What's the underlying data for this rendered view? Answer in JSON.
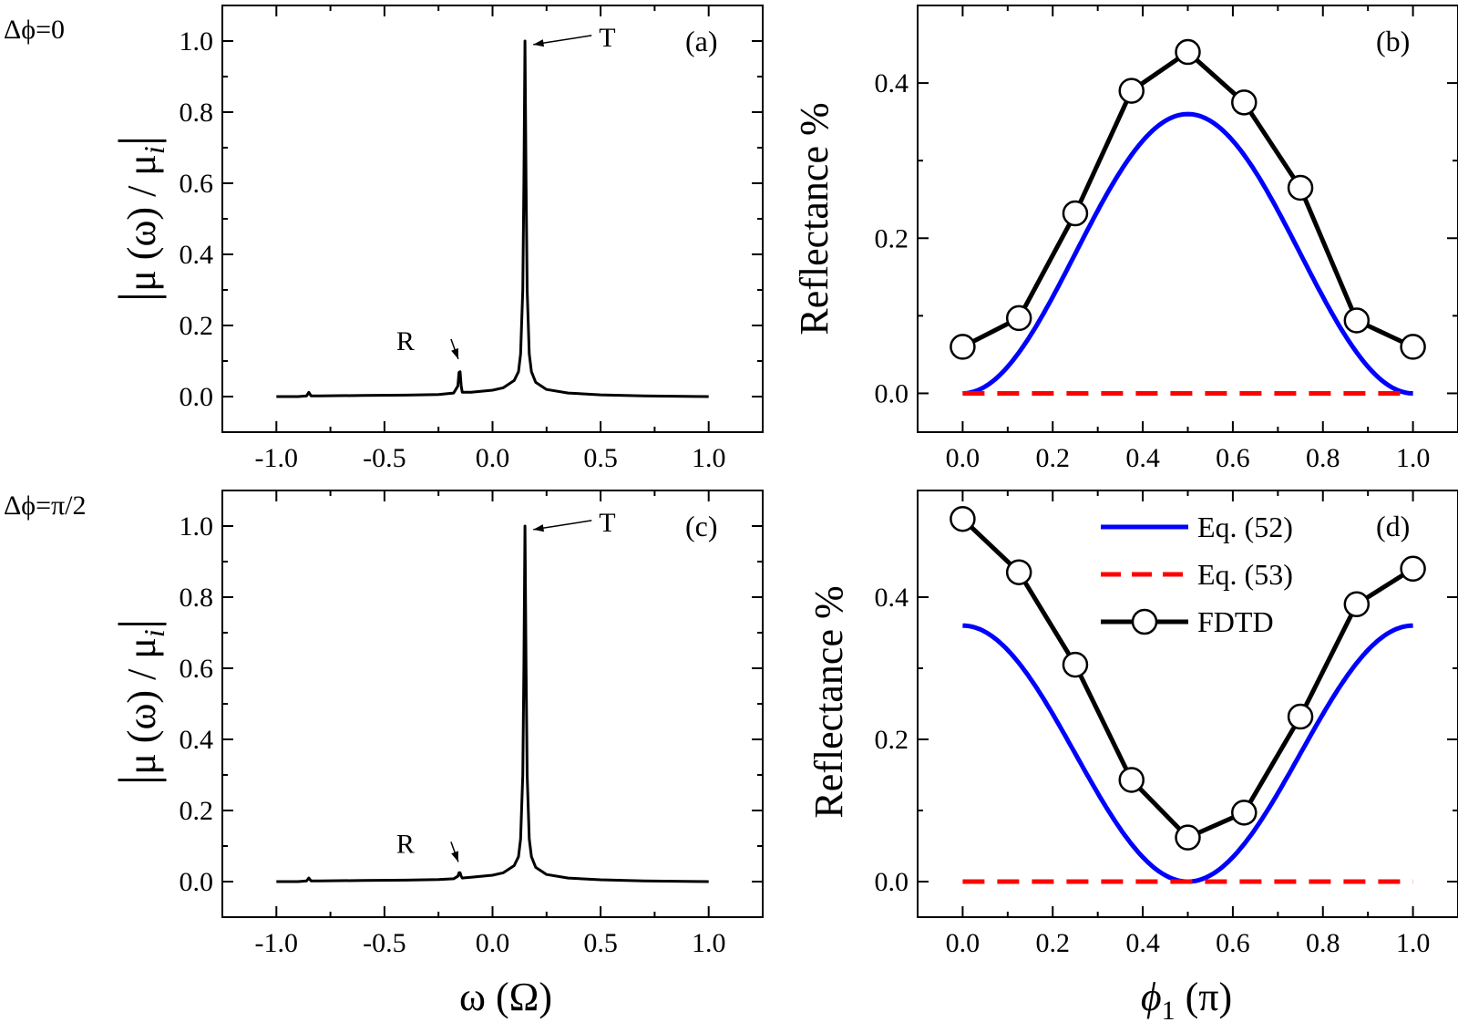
{
  "figure": {
    "row_labels": [
      "Δϕ=0",
      "Δϕ=π/2"
    ]
  },
  "chart_data": [
    {
      "id": "a",
      "type": "line",
      "panel_label": "(a)",
      "xlabel": "",
      "ylabel": "|μ(ω)/μi|",
      "xlim": [
        -1.25,
        1.25
      ],
      "ylim": [
        -0.1,
        1.1
      ],
      "xticks": [
        "-1.0",
        "-0.5",
        "0.0",
        "0.5",
        "1.0"
      ],
      "yticks": [
        "0.0",
        "0.2",
        "0.4",
        "0.6",
        "0.8",
        "1.0"
      ],
      "series": [
        {
          "color": "#000000",
          "style": "solid",
          "x": [
            -1.0,
            -0.9,
            -0.86,
            -0.85,
            -0.84,
            -0.8,
            -0.6,
            -0.4,
            -0.25,
            -0.18,
            -0.16,
            -0.155,
            -0.15,
            -0.145,
            -0.14,
            -0.1,
            0.0,
            0.05,
            0.1,
            0.12,
            0.13,
            0.14,
            0.145,
            0.15,
            0.155,
            0.16,
            0.17,
            0.18,
            0.2,
            0.25,
            0.35,
            0.5,
            0.7,
            1.0
          ],
          "y": [
            0.0,
            0.0,
            0.002,
            0.012,
            0.002,
            0.002,
            0.003,
            0.004,
            0.006,
            0.01,
            0.03,
            0.068,
            0.07,
            0.03,
            0.012,
            0.012,
            0.018,
            0.025,
            0.045,
            0.07,
            0.12,
            0.3,
            0.6,
            1.0,
            0.6,
            0.3,
            0.12,
            0.07,
            0.04,
            0.02,
            0.01,
            0.005,
            0.002,
            0.0
          ]
        }
      ],
      "annotations": [
        {
          "text": "T",
          "point": [
            0.155,
            0.99
          ]
        },
        {
          "text": "R",
          "point": [
            -0.15,
            0.09
          ]
        }
      ]
    },
    {
      "id": "b",
      "type": "line",
      "panel_label": "(b)",
      "xlabel": "",
      "ylabel": "Reflectance %",
      "xlim": [
        -0.1,
        1.1
      ],
      "ylim": [
        -0.05,
        0.5
      ],
      "xticks": [
        "0.0",
        "0.2",
        "0.4",
        "0.6",
        "0.8",
        "1.0"
      ],
      "yticks": [
        "0.0",
        "0.2",
        "0.4"
      ],
      "series": [
        {
          "key": "eq52",
          "color": "#0000ff",
          "style": "solid",
          "func": "0.36*sin^2(pi*x)"
        },
        {
          "key": "eq53",
          "color": "#ff0000",
          "style": "dashed",
          "x": [
            0.0,
            1.0
          ],
          "y": [
            0.0,
            0.0
          ]
        },
        {
          "key": "fdtd",
          "color": "#000000",
          "style": "circle-line",
          "x": [
            0.0,
            0.125,
            0.25,
            0.375,
            0.5,
            0.625,
            0.75,
            0.875,
            1.0
          ],
          "y": [
            0.06,
            0.097,
            0.232,
            0.39,
            0.44,
            0.375,
            0.265,
            0.094,
            0.06
          ]
        }
      ]
    },
    {
      "id": "c",
      "type": "line",
      "panel_label": "(c)",
      "xlabel": "ω (Ω)",
      "ylabel": "|μ(ω)/μi|",
      "xlim": [
        -1.25,
        1.25
      ],
      "ylim": [
        -0.1,
        1.1
      ],
      "xticks": [
        "-1.0",
        "-0.5",
        "0.0",
        "0.5",
        "1.0"
      ],
      "yticks": [
        "0.0",
        "0.2",
        "0.4",
        "0.6",
        "0.8",
        "1.0"
      ],
      "series": [
        {
          "color": "#000000",
          "style": "solid",
          "x": [
            -1.0,
            -0.9,
            -0.86,
            -0.85,
            -0.84,
            -0.8,
            -0.6,
            -0.4,
            -0.25,
            -0.18,
            -0.16,
            -0.155,
            -0.15,
            -0.145,
            -0.14,
            -0.1,
            0.0,
            0.05,
            0.1,
            0.12,
            0.13,
            0.14,
            0.145,
            0.15,
            0.155,
            0.16,
            0.17,
            0.18,
            0.2,
            0.25,
            0.35,
            0.5,
            0.7,
            1.0
          ],
          "y": [
            0.0,
            0.0,
            0.002,
            0.01,
            0.002,
            0.002,
            0.003,
            0.004,
            0.006,
            0.008,
            0.015,
            0.025,
            0.025,
            0.015,
            0.01,
            0.012,
            0.018,
            0.025,
            0.045,
            0.07,
            0.12,
            0.3,
            0.6,
            1.0,
            0.6,
            0.3,
            0.12,
            0.07,
            0.04,
            0.02,
            0.01,
            0.005,
            0.002,
            0.0
          ]
        }
      ],
      "annotations": [
        {
          "text": "T",
          "point": [
            0.155,
            0.99
          ]
        },
        {
          "text": "R",
          "point": [
            -0.15,
            0.04
          ]
        }
      ]
    },
    {
      "id": "d",
      "type": "line",
      "panel_label": "(d)",
      "xlabel": "ϕ1 (π)",
      "ylabel": "Reflectance %",
      "xlim": [
        -0.1,
        1.1
      ],
      "ylim": [
        -0.05,
        0.55
      ],
      "xticks": [
        "0.0",
        "0.2",
        "0.4",
        "0.6",
        "0.8",
        "1.0"
      ],
      "yticks": [
        "0.0",
        "0.2",
        "0.4"
      ],
      "legend": {
        "position": "top-right",
        "entries": [
          "Eq. (52)",
          "Eq. (53)",
          "FDTD"
        ]
      },
      "series": [
        {
          "key": "eq52",
          "name": "Eq. (52)",
          "color": "#0000ff",
          "style": "solid",
          "func": "0.36*cos^2(pi*x)"
        },
        {
          "key": "eq53",
          "name": "Eq. (53)",
          "color": "#ff0000",
          "style": "dashed",
          "x": [
            0.0,
            1.0
          ],
          "y": [
            0.0,
            0.0
          ]
        },
        {
          "key": "fdtd",
          "name": "FDTD",
          "color": "#000000",
          "style": "circle-line",
          "x": [
            0.0,
            0.125,
            0.25,
            0.375,
            0.5,
            0.625,
            0.75,
            0.875,
            1.0
          ],
          "y": [
            0.51,
            0.435,
            0.305,
            0.143,
            0.062,
            0.097,
            0.232,
            0.39,
            0.44
          ]
        }
      ]
    }
  ]
}
